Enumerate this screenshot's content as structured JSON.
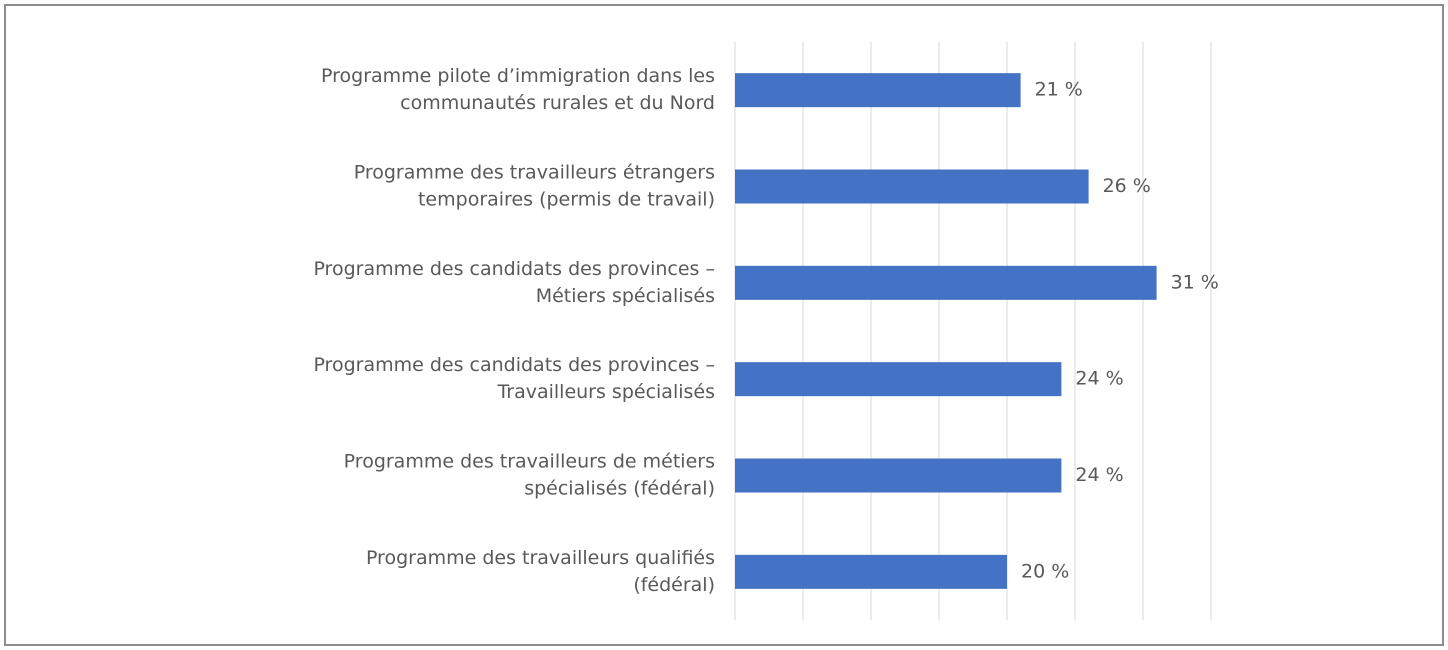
{
  "chart_data": {
    "type": "bar",
    "orientation": "horizontal",
    "categories": [
      [
        "Programme pilote d’immigration dans les",
        "communautés rurales et du Nord"
      ],
      [
        "Programme des travailleurs étrangers",
        "temporaires (permis de travail)"
      ],
      [
        "Programme des candidats des provinces –",
        "Métiers spécialisés"
      ],
      [
        "Programme des candidats des provinces –",
        "Travailleurs spécialisés"
      ],
      [
        "Programme des travailleurs de métiers",
        "spécialisés (fédéral)"
      ],
      [
        "Programme des travailleurs qualifiés",
        "(fédéral)"
      ]
    ],
    "values": [
      21,
      26,
      31,
      24,
      24,
      20
    ],
    "value_labels": [
      "21 %",
      "26 %",
      "31 %",
      "24 %",
      "24 %",
      "20 %"
    ],
    "color": "#4472c4",
    "xlim": [
      0,
      35
    ],
    "xticks": [
      0,
      5,
      10,
      15,
      20,
      25,
      30,
      35
    ],
    "grid": true
  }
}
